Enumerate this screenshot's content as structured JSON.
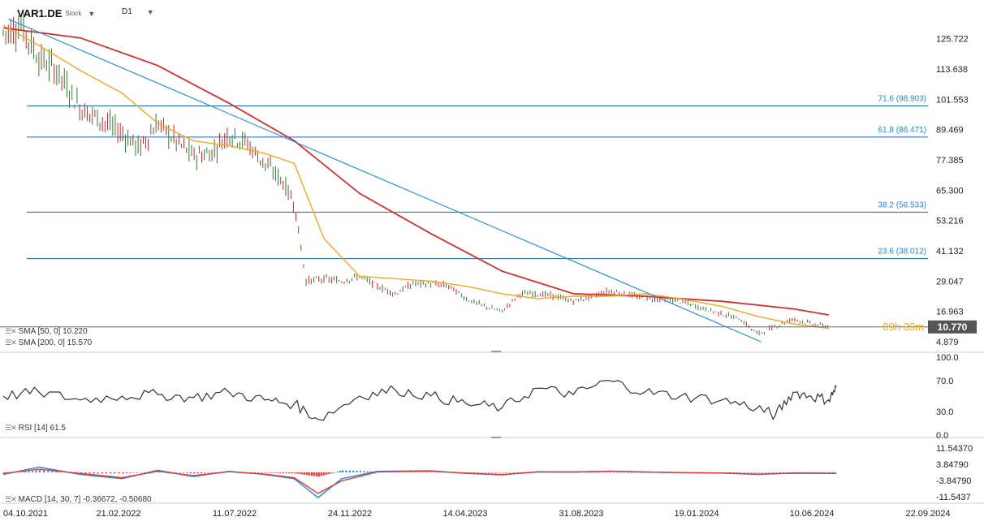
{
  "header": {
    "symbol": "VAR1.DE",
    "instrument_type": "Stock",
    "interval": "D1"
  },
  "overlay": {
    "countdown": "09h 39m",
    "last_price": "10.770"
  },
  "indicators": {
    "sma50": "SMA [50, 0] 10.220",
    "sma200": "SMA [200, 0] 15.570",
    "rsi": "RSI [14] 61.5",
    "macd": "MACD [14, 30, 7] -0.36672, -0.50680"
  },
  "colors": {
    "candle_up": "#2e7d32",
    "candle_down": "#c62828",
    "sma50": "#f5a623",
    "sma200": "#d32f2f",
    "trendline": "#1e88e5",
    "fib": "#1565c0",
    "rsi": "#333333",
    "macd": "#1e88e5",
    "signal": "#e53935",
    "hist_pos": "#1e88e5",
    "hist_neg": "#e53935",
    "price_tag": "#555555"
  },
  "chart_data": {
    "type": "candlestick",
    "price_axis": {
      "ticks": [
        "125.722",
        "113.638",
        "101.553",
        "89.469",
        "77.385",
        "65.300",
        "53.216",
        "41.132",
        "29.047",
        "16.963",
        "4.879"
      ],
      "range": [
        1.0,
        134.0
      ]
    },
    "date_axis": {
      "ticks": [
        "04.10.2021",
        "21.02.2022",
        "11.07.2022",
        "24.11.2022",
        "14.04.2023",
        "31.08.2023",
        "19.01.2024",
        "10.06.2024",
        "22.09.2024"
      ],
      "range": [
        "2021-10-04",
        "2024-09-28"
      ]
    },
    "fibonacci_levels": [
      {
        "label": "71.6 (98.903)",
        "value": 98.903
      },
      {
        "label": "61.8 (86.471)",
        "value": 86.471
      },
      {
        "label": "38.2 (56.533)",
        "value": 56.533
      },
      {
        "label": "23.6 (38.012)",
        "value": 38.012
      }
    ],
    "trendline": {
      "from": {
        "date": "2021-10-10",
        "price": 133.5
      },
      "to": {
        "date": "2024-03-15",
        "price": 4.9
      }
    },
    "price_series": {
      "x": [
        "2021-10-04",
        "2021-10-25",
        "2021-11-15",
        "2021-12-06",
        "2022-01-03",
        "2022-01-24",
        "2022-02-21",
        "2022-03-14",
        "2022-04-04",
        "2022-04-25",
        "2022-05-16",
        "2022-06-06",
        "2022-06-27",
        "2022-07-18",
        "2022-08-08",
        "2022-08-29",
        "2022-09-12",
        "2022-09-26",
        "2022-10-17",
        "2022-11-07",
        "2022-11-28",
        "2022-12-19",
        "2023-01-09",
        "2023-01-30",
        "2023-02-20",
        "2023-03-13",
        "2023-04-03",
        "2023-04-24",
        "2023-05-15",
        "2023-06-05",
        "2023-06-26",
        "2023-07-17",
        "2023-08-07",
        "2023-08-28",
        "2023-09-18",
        "2023-10-09",
        "2023-10-30",
        "2023-11-20",
        "2023-12-11",
        "2024-01-08",
        "2024-01-29",
        "2024-02-19",
        "2024-03-11",
        "2024-04-01",
        "2024-04-22",
        "2024-05-13",
        "2024-06-03"
      ],
      "close": [
        128,
        131,
        118,
        113,
        98,
        94,
        88,
        82,
        92,
        85,
        79,
        80,
        88,
        84,
        76,
        69,
        60,
        29,
        30,
        29,
        31,
        27,
        24,
        28,
        28,
        27,
        22,
        19,
        17,
        24,
        24,
        23,
        21,
        23,
        25,
        24,
        22,
        22,
        21,
        18,
        16,
        14,
        8,
        11,
        14,
        12,
        11
      ]
    },
    "sma50": {
      "x": [
        "2021-10-04",
        "2021-11-15",
        "2022-01-03",
        "2022-02-21",
        "2022-04-04",
        "2022-05-16",
        "2022-06-27",
        "2022-08-08",
        "2022-09-12",
        "2022-10-17",
        "2022-11-28",
        "2023-01-09",
        "2023-02-20",
        "2023-04-03",
        "2023-05-15",
        "2023-06-26",
        "2023-08-07",
        "2023-09-18",
        "2023-10-30",
        "2023-12-11",
        "2024-01-29",
        "2024-03-11",
        "2024-04-22",
        "2024-06-03"
      ],
      "values": [
        131,
        123,
        113,
        104,
        92,
        85,
        83,
        80,
        76,
        46,
        31,
        30,
        29,
        27,
        24,
        22,
        23,
        23,
        24,
        22,
        19,
        15,
        12,
        10.22
      ]
    },
    "sma200": {
      "x": [
        "2021-10-04",
        "2022-01-03",
        "2022-04-04",
        "2022-06-27",
        "2022-09-12",
        "2022-11-28",
        "2023-02-20",
        "2023-05-15",
        "2023-08-07",
        "2023-10-30",
        "2024-01-29",
        "2024-04-22",
        "2024-06-03"
      ],
      "values": [
        130,
        126,
        115,
        100,
        85,
        64,
        48,
        33,
        24,
        23,
        21,
        18,
        15.57
      ]
    },
    "rsi": {
      "ticks": [
        "100.0",
        "70.0",
        "30.0",
        "0.0"
      ],
      "range": [
        0,
        100
      ],
      "x": [
        "2021-10-04",
        "2021-11-15",
        "2022-01-03",
        "2022-02-21",
        "2022-04-04",
        "2022-05-16",
        "2022-06-27",
        "2022-08-08",
        "2022-09-12",
        "2022-10-10",
        "2022-11-28",
        "2023-01-09",
        "2023-02-20",
        "2023-04-03",
        "2023-05-15",
        "2023-06-26",
        "2023-08-07",
        "2023-09-18",
        "2023-10-30",
        "2023-12-11",
        "2024-01-29",
        "2024-03-11",
        "2024-04-01",
        "2024-04-22",
        "2024-05-13",
        "2024-06-03",
        "2024-06-12"
      ],
      "values": [
        50,
        55,
        45,
        50,
        52,
        48,
        55,
        45,
        40,
        20,
        50,
        58,
        50,
        40,
        35,
        60,
        52,
        70,
        55,
        50,
        45,
        35,
        25,
        55,
        50,
        45,
        61.5
      ]
    },
    "macd": {
      "ticks": [
        "11.54370",
        "3.84790",
        "-3.84790",
        "-11.5437"
      ],
      "range": [
        -13.5,
        13.5
      ],
      "x": [
        "2021-10-04",
        "2021-11-15",
        "2022-01-03",
        "2022-02-21",
        "2022-04-04",
        "2022-05-16",
        "2022-06-27",
        "2022-08-08",
        "2022-09-12",
        "2022-10-10",
        "2022-11-07",
        "2022-12-19",
        "2023-02-20",
        "2023-04-03",
        "2023-05-15",
        "2023-06-26",
        "2023-08-07",
        "2023-09-18",
        "2023-10-30",
        "2023-12-11",
        "2024-01-29",
        "2024-03-11",
        "2024-04-22",
        "2024-06-12"
      ],
      "macd": [
        -1,
        2.5,
        -1,
        -3,
        1,
        -2,
        0.5,
        -1,
        -3,
        -12,
        -3,
        0.5,
        0.8,
        -0.5,
        -1.2,
        0.3,
        0.2,
        0.6,
        0.2,
        -0.1,
        -0.3,
        -1,
        -0.3,
        -0.37
      ],
      "signal": [
        -0.5,
        1.5,
        -0.5,
        -2.5,
        0.5,
        -1.5,
        0.3,
        -0.8,
        -2.5,
        -10,
        -4,
        0.2,
        0.6,
        -0.4,
        -1,
        0.2,
        0.2,
        0.5,
        0.2,
        -0.1,
        -0.3,
        -0.8,
        -0.4,
        -0.51
      ]
    }
  }
}
